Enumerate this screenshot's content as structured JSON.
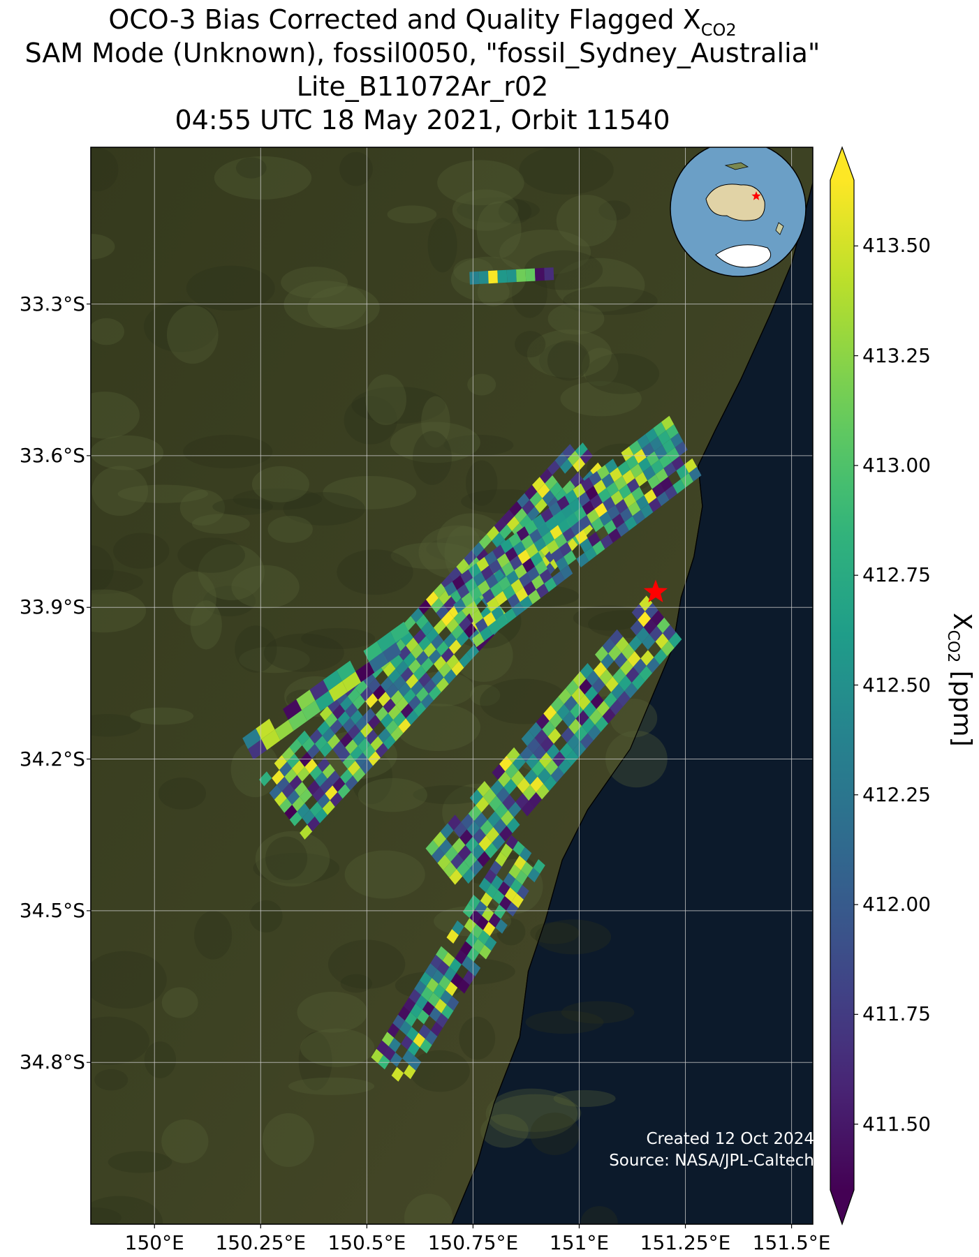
{
  "title": {
    "line1_prefix": "OCO-3 Bias Corrected and Quality Flagged X",
    "line1_sub": "CO2",
    "line2": "SAM Mode (Unknown), fossil0050, \"fossil_Sydney_Australia\"",
    "line3": "Lite_B11072Ar_r02",
    "line4": "04:55 UTC 18 May 2021, Orbit 11540"
  },
  "map": {
    "lon_range": [
      149.85,
      151.55
    ],
    "lat_range": [
      -35.12,
      -32.99
    ],
    "lon_ticks": [
      {
        "value": 150.0,
        "label": "150°E"
      },
      {
        "value": 150.25,
        "label": "150.25°E"
      },
      {
        "value": 150.5,
        "label": "150.5°E"
      },
      {
        "value": 150.75,
        "label": "150.75°E"
      },
      {
        "value": 151.0,
        "label": "151°E"
      },
      {
        "value": 151.25,
        "label": "151.25°E"
      },
      {
        "value": 151.5,
        "label": "151.5°E"
      }
    ],
    "lat_ticks": [
      {
        "value": -33.3,
        "label": "33.3°S"
      },
      {
        "value": -33.6,
        "label": "33.6°S"
      },
      {
        "value": -33.9,
        "label": "33.9°S"
      },
      {
        "value": -34.2,
        "label": "34.2°S"
      },
      {
        "value": -34.5,
        "label": "34.5°S"
      },
      {
        "value": -34.8,
        "label": "34.8°S"
      }
    ],
    "target_marker": {
      "lon": 151.18,
      "lat": -33.87,
      "color": "#ff0000"
    },
    "colors": {
      "land": "#3d4223",
      "ocean": "#0c1a2b",
      "gridline": "#c8c8c8"
    }
  },
  "colorbar": {
    "colormap": "viridis",
    "min": 411.35,
    "max": 413.65,
    "extend": "both",
    "ticks": [
      "413.50",
      "413.25",
      "413.00",
      "412.75",
      "412.50",
      "412.25",
      "412.00",
      "411.75",
      "411.50"
    ],
    "label_prefix": "X",
    "label_sub": "CO2",
    "label_suffix": " [ppm]"
  },
  "credit": {
    "line1": "Created 12 Oct 2024",
    "line2": "Source: NASA/JPL-Caltech"
  }
}
